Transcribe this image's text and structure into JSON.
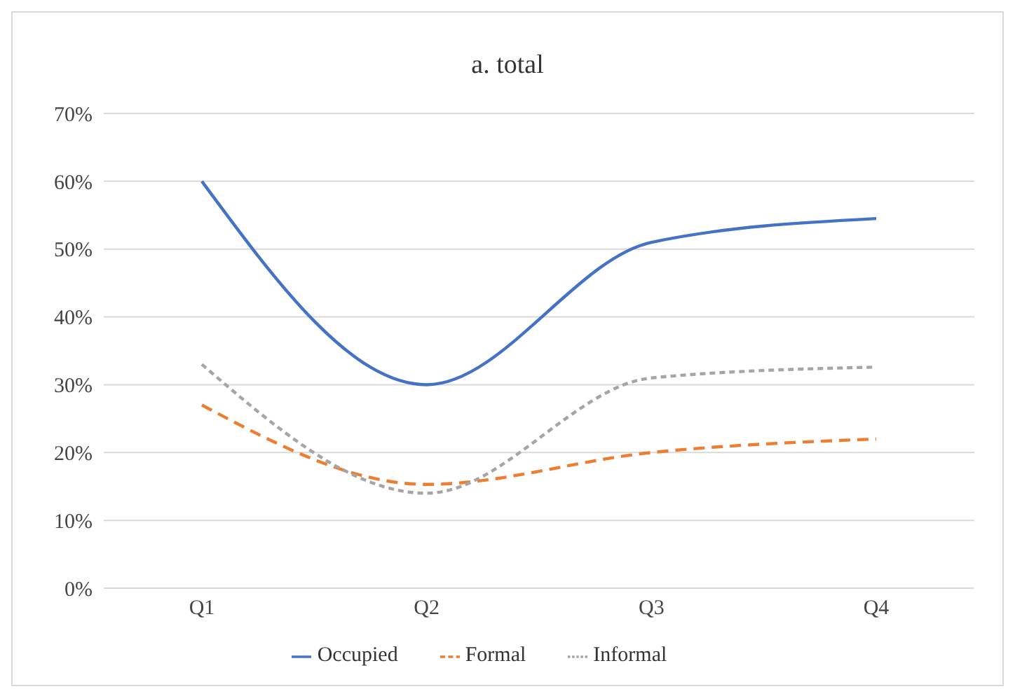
{
  "chart_data": {
    "type": "line",
    "title": "a. total",
    "categories": [
      "Q1",
      "Q2",
      "Q3",
      "Q4"
    ],
    "series": [
      {
        "name": "Occupied",
        "color": "#4472c4",
        "values": [
          60,
          30,
          51,
          54.5
        ],
        "line_style": "solid"
      },
      {
        "name": "Formal",
        "color": "#ed7d31",
        "values": [
          27,
          15.3,
          20,
          22
        ],
        "line_style": "dashed"
      },
      {
        "name": "Informal",
        "color": "#a5a5a5",
        "values": [
          33,
          14,
          31,
          32.6
        ],
        "line_style": "dotted"
      }
    ],
    "ylim": [
      0,
      70
    ],
    "yticks": [
      {
        "value": 0,
        "label": "0%"
      },
      {
        "value": 10,
        "label": "10%"
      },
      {
        "value": 20,
        "label": "20%"
      },
      {
        "value": 30,
        "label": "30%"
      },
      {
        "value": 40,
        "label": "40%"
      },
      {
        "value": 50,
        "label": "50%"
      },
      {
        "value": 60,
        "label": "60%"
      },
      {
        "value": 70,
        "label": "70%"
      }
    ],
    "grid": "y",
    "legend": "bottom",
    "marker": "none"
  }
}
